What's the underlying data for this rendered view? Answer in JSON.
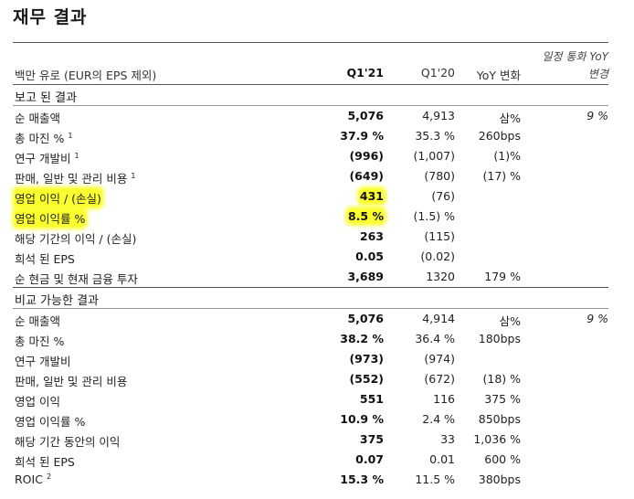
{
  "title": "재무 결과",
  "fx_note": [
    "일정 통화 YoY",
    "변경"
  ],
  "columns": {
    "label": "백만 유로 (EUR의 EPS 제외)",
    "q21": "Q1'21",
    "q20": "Q1'20",
    "yoy": "YoY 변화"
  },
  "reported": {
    "heading": "보고 된 결과",
    "rows": [
      {
        "label": "순 매출액",
        "sup": "",
        "q21": "5,076",
        "q20": "4,913",
        "yoy": "삼%",
        "fx": "9 %"
      },
      {
        "label": "총 마진 %",
        "sup": "1",
        "q21": "37.9 %",
        "q20": "35.3 %",
        "yoy": "260bps",
        "fx": ""
      },
      {
        "label": "연구 개발비",
        "sup": "1",
        "q21": "(996)",
        "q20": "(1,007)",
        "yoy": "(1)%",
        "fx": ""
      },
      {
        "label": "판매, 일반 및 관리 비용",
        "sup": "1",
        "q21": "(649)",
        "q20": "(780)",
        "yoy": "(17) %",
        "fx": ""
      },
      {
        "label": "영업 이익 / (손실)",
        "sup": "",
        "q21": "431",
        "q20": "(76)",
        "yoy": "",
        "fx": ""
      },
      {
        "label": "영업 이익률 %",
        "sup": "",
        "q21": "8.5 %",
        "q20": "(1.5) %",
        "yoy": "",
        "fx": ""
      },
      {
        "label": "해당 기간의 이익 / (손실)",
        "sup": "",
        "q21": "263",
        "q20": "(115)",
        "yoy": "",
        "fx": ""
      },
      {
        "label": "희석 된 EPS",
        "sup": "",
        "q21": "0.05",
        "q20": "(0.02)",
        "yoy": "",
        "fx": ""
      },
      {
        "label": "순 현금 및 현재 금융 투자",
        "sup": "",
        "q21": "3,689",
        "q20": "1320",
        "yoy": "179 %",
        "fx": ""
      }
    ]
  },
  "comparable": {
    "heading": "비교 가능한 결과",
    "rows": [
      {
        "label": "순 매출액",
        "sup": "",
        "q21": "5,076",
        "q20": "4,914",
        "yoy": "삼%",
        "fx": "9 %"
      },
      {
        "label": "총 마진 %",
        "sup": "",
        "q21": "38.2 %",
        "q20": "36.4 %",
        "yoy": "180bps",
        "fx": ""
      },
      {
        "label": "연구 개발비",
        "sup": "",
        "q21": "(973)",
        "q20": "(974)",
        "yoy": "",
        "fx": ""
      },
      {
        "label": "판매, 일반 및 관리 비용",
        "sup": "",
        "q21": "(552)",
        "q20": "(672)",
        "yoy": "(18) %",
        "fx": ""
      },
      {
        "label": "영업 이익",
        "sup": "",
        "q21": "551",
        "q20": "116",
        "yoy": "375 %",
        "fx": ""
      },
      {
        "label": "영업 이익률 %",
        "sup": "",
        "q21": "10.9 %",
        "q20": "2.4 %",
        "yoy": "850bps",
        "fx": ""
      },
      {
        "label": "해당 기간 동안의 이익",
        "sup": "",
        "q21": "375",
        "q20": "33",
        "yoy": "1,036 %",
        "fx": ""
      },
      {
        "label": "희석 된 EPS",
        "sup": "",
        "q21": "0.07",
        "q20": "0.01",
        "yoy": "600 %",
        "fx": ""
      },
      {
        "label": "ROIC",
        "sup": "2",
        "q21": "15.3 %",
        "q20": "11.5 %",
        "yoy": "380bps",
        "fx": ""
      }
    ]
  },
  "highlight_color": "#fbff2e"
}
